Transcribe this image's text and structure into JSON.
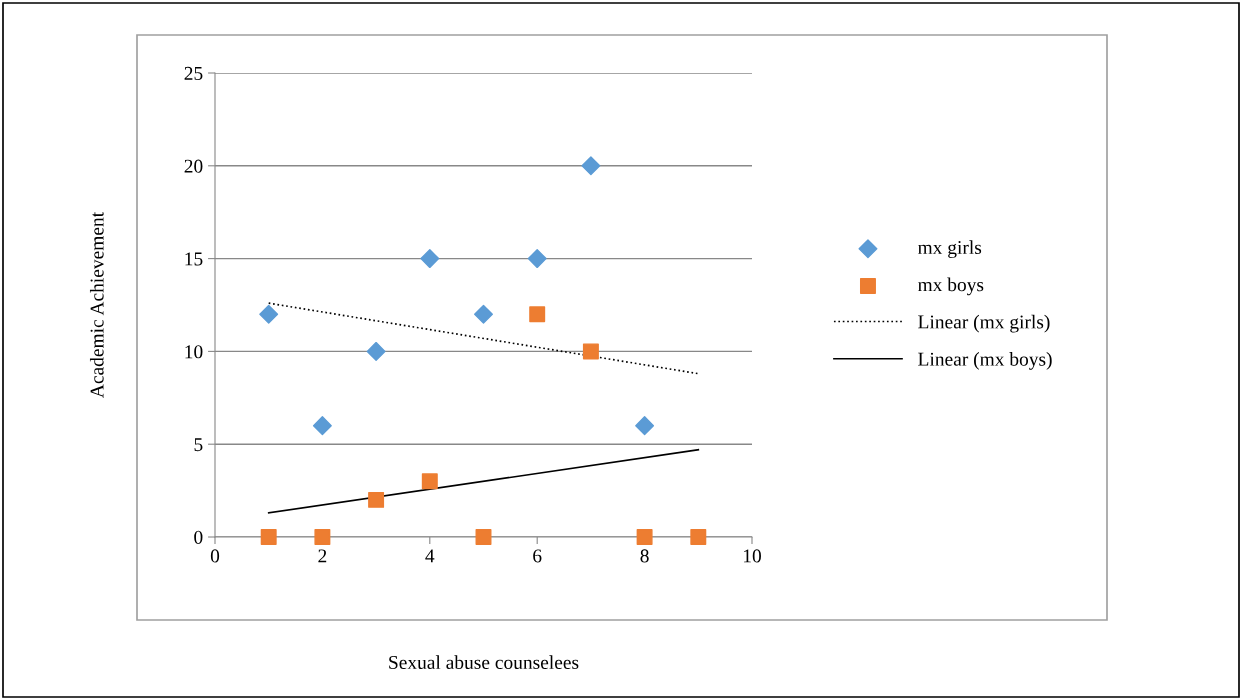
{
  "chart_data": {
    "type": "scatter",
    "xlabel": "Sexual abuse counselees",
    "ylabel": "Academic Achievement",
    "xlim": [
      0,
      10
    ],
    "xticks": [
      0,
      2,
      4,
      6,
      8,
      10
    ],
    "ylim": [
      0,
      25
    ],
    "yticks": [
      0,
      5,
      10,
      15,
      20,
      25
    ],
    "grid": "y",
    "legend": "right",
    "series": [
      {
        "name": "mx girls",
        "marker": "diamond",
        "color": "#5b9bd5",
        "x": [
          1,
          2,
          3,
          4,
          5,
          6,
          7,
          8
        ],
        "values": [
          12,
          6,
          10,
          15,
          12,
          15,
          20,
          6
        ]
      },
      {
        "name": "mx boys",
        "marker": "square",
        "color": "#ed7d31",
        "x": [
          1,
          2,
          3,
          4,
          5,
          6,
          7,
          8,
          9
        ],
        "values": [
          0,
          0,
          2,
          3,
          0,
          12,
          10,
          0,
          0
        ]
      },
      {
        "name": "Linear (mx girls)",
        "type": "line",
        "line_style": "dotted",
        "color": "#000000",
        "x": [
          1,
          9
        ],
        "values": [
          12.6,
          8.8
        ]
      },
      {
        "name": "Linear (mx boys)",
        "type": "line",
        "line_style": "solid",
        "color": "#000000",
        "x": [
          1,
          9
        ],
        "values": [
          1.3,
          4.7
        ]
      }
    ]
  }
}
